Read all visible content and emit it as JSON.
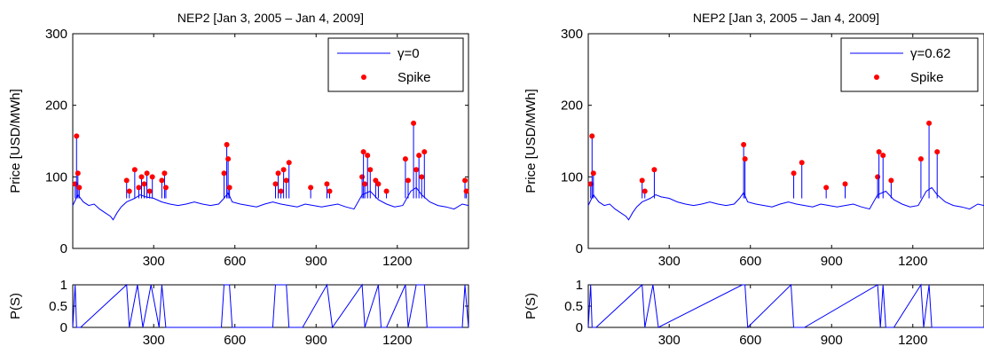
{
  "chart_data": [
    {
      "type": "line",
      "title": "NEP2 [Jan 3, 2005 – Jan 4, 2009]",
      "ylabel": "Price [USD/MWh]",
      "xlabel": "",
      "xlim": [
        1,
        1463
      ],
      "ylim": [
        0,
        300
      ],
      "xticks": [
        300,
        600,
        900,
        1200
      ],
      "yticks": [
        0,
        100,
        200,
        300
      ],
      "legend": {
        "position": "top-right",
        "entries": [
          "γ=0",
          "Spike"
        ]
      },
      "colors": {
        "line": "#0000ff",
        "spike": "#ff0000"
      },
      "series": [
        {
          "name": "γ=0",
          "x": [
            1,
            20,
            40,
            60,
            80,
            100,
            120,
            140,
            150,
            165,
            180,
            200,
            230,
            250,
            270,
            300,
            330,
            360,
            390,
            420,
            450,
            480,
            510,
            540,
            560,
            575,
            590,
            620,
            650,
            680,
            710,
            740,
            770,
            800,
            830,
            860,
            890,
            920,
            950,
            980,
            1010,
            1040,
            1070,
            1100,
            1130,
            1160,
            1190,
            1220,
            1250,
            1270,
            1290,
            1320,
            1350,
            1380,
            1410,
            1440,
            1463
          ],
          "y": [
            60,
            75,
            65,
            60,
            62,
            55,
            50,
            45,
            40,
            50,
            58,
            65,
            70,
            75,
            72,
            70,
            65,
            62,
            60,
            62,
            65,
            62,
            60,
            62,
            70,
            78,
            65,
            62,
            60,
            58,
            62,
            65,
            62,
            60,
            58,
            62,
            60,
            58,
            60,
            62,
            58,
            55,
            75,
            80,
            68,
            62,
            58,
            60,
            80,
            85,
            75,
            65,
            60,
            58,
            55,
            62,
            60
          ]
        },
        {
          "name": "Spike",
          "x": [
            10,
            15,
            20,
            25,
            200,
            210,
            230,
            245,
            255,
            265,
            275,
            285,
            295,
            330,
            340,
            345,
            560,
            570,
            575,
            580,
            750,
            760,
            770,
            780,
            790,
            800,
            880,
            940,
            950,
            1070,
            1075,
            1080,
            1090,
            1100,
            1120,
            1130,
            1160,
            1230,
            1240,
            1260,
            1270,
            1280,
            1290,
            1300,
            1450,
            1455
          ],
          "y": [
            90,
            157,
            105,
            85,
            95,
            80,
            110,
            85,
            100,
            90,
            105,
            80,
            100,
            95,
            105,
            85,
            105,
            145,
            125,
            85,
            90,
            105,
            80,
            110,
            95,
            120,
            85,
            90,
            80,
            100,
            135,
            90,
            130,
            110,
            95,
            90,
            80,
            125,
            95,
            175,
            110,
            130,
            100,
            135,
            95,
            80
          ]
        }
      ]
    },
    {
      "type": "line",
      "title": "",
      "ylabel": "P(S)",
      "xlabel": "",
      "xlim": [
        1,
        1463
      ],
      "ylim": [
        0,
        1
      ],
      "xticks": [
        300,
        600,
        900,
        1200
      ],
      "yticks": [
        0,
        0.5,
        1
      ],
      "colors": {
        "line": "#0000ff"
      },
      "series": [
        {
          "name": "",
          "x": [
            1,
            10,
            15,
            30,
            200,
            210,
            240,
            260,
            290,
            320,
            330,
            345,
            550,
            560,
            580,
            590,
            740,
            750,
            790,
            800,
            850,
            940,
            960,
            1070,
            1080,
            1130,
            1140,
            1160,
            1230,
            1240,
            1270,
            1300,
            1310,
            1440,
            1450,
            1463
          ],
          "y": [
            0,
            1,
            0,
            0,
            1,
            0,
            1,
            0,
            1,
            0,
            1,
            0,
            0,
            1,
            1,
            0,
            0,
            1,
            1,
            0,
            0,
            1,
            0,
            1,
            0,
            1,
            0,
            0,
            1,
            0,
            1,
            1,
            0,
            0,
            1,
            0
          ]
        }
      ]
    },
    {
      "type": "line",
      "title": "NEP2 [Jan 3, 2005 – Jan 4, 2009]",
      "ylabel": "Price [USD/MWh]",
      "xlabel": "",
      "xlim": [
        1,
        1463
      ],
      "ylim": [
        0,
        300
      ],
      "xticks": [
        300,
        600,
        900,
        1200
      ],
      "yticks": [
        0,
        100,
        200,
        300
      ],
      "legend": {
        "position": "top-right",
        "entries": [
          "γ=0.62",
          "Spike"
        ]
      },
      "colors": {
        "line": "#0000ff",
        "spike": "#ff0000"
      },
      "series": [
        {
          "name": "γ=0.62",
          "x": [
            1,
            20,
            40,
            60,
            80,
            100,
            120,
            140,
            150,
            165,
            180,
            200,
            230,
            250,
            270,
            300,
            330,
            360,
            390,
            420,
            450,
            480,
            510,
            540,
            560,
            575,
            590,
            620,
            650,
            680,
            710,
            740,
            770,
            800,
            830,
            860,
            890,
            920,
            950,
            980,
            1010,
            1040,
            1070,
            1100,
            1130,
            1160,
            1190,
            1220,
            1250,
            1270,
            1290,
            1320,
            1350,
            1380,
            1410,
            1440,
            1463
          ],
          "y": [
            60,
            75,
            65,
            60,
            62,
            55,
            50,
            45,
            40,
            50,
            58,
            65,
            70,
            75,
            72,
            70,
            65,
            62,
            60,
            62,
            65,
            62,
            60,
            62,
            70,
            78,
            65,
            62,
            60,
            58,
            62,
            65,
            62,
            60,
            58,
            62,
            60,
            58,
            60,
            62,
            58,
            55,
            75,
            80,
            68,
            62,
            58,
            60,
            80,
            85,
            75,
            65,
            60,
            58,
            55,
            62,
            60
          ]
        },
        {
          "name": "Spike",
          "x": [
            10,
            15,
            20,
            200,
            210,
            245,
            575,
            580,
            760,
            790,
            880,
            950,
            1070,
            1075,
            1090,
            1120,
            1230,
            1260,
            1290
          ],
          "y": [
            90,
            157,
            105,
            95,
            80,
            110,
            145,
            125,
            105,
            120,
            85,
            90,
            100,
            135,
            130,
            95,
            125,
            175,
            135
          ]
        }
      ]
    },
    {
      "type": "line",
      "title": "",
      "ylabel": "P(S)",
      "xlabel": "",
      "xlim": [
        1,
        1463
      ],
      "ylim": [
        0,
        1
      ],
      "xticks": [
        300,
        600,
        900,
        1200
      ],
      "yticks": [
        0,
        0.5,
        1
      ],
      "colors": {
        "line": "#0000ff"
      },
      "series": [
        {
          "name": "",
          "x": [
            1,
            10,
            15,
            30,
            200,
            210,
            240,
            260,
            570,
            580,
            590,
            750,
            760,
            800,
            1070,
            1080,
            1090,
            1100,
            1130,
            1230,
            1240,
            1260,
            1270,
            1300,
            1463
          ],
          "y": [
            0,
            1,
            0,
            0,
            1,
            0,
            1,
            0,
            1,
            1,
            0,
            1,
            0,
            0,
            1,
            0,
            1,
            0,
            0,
            1,
            0,
            1,
            0,
            0,
            0
          ]
        }
      ]
    }
  ]
}
